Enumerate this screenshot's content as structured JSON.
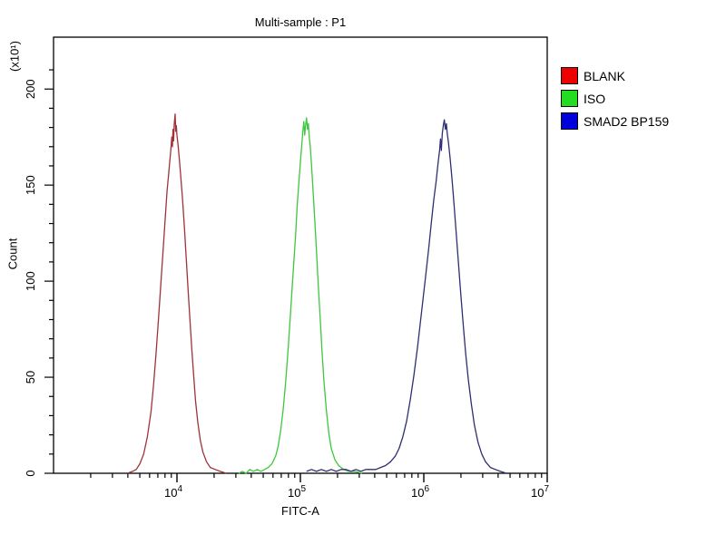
{
  "title": "Multi-sample : P1",
  "axes": {
    "x": {
      "label": "FITC-A",
      "scale": "log10",
      "min_exp": 3,
      "max_exp": 7,
      "tick_base": "10",
      "major_exponents": [
        4,
        5,
        6,
        7
      ],
      "minor_multiples": [
        2,
        3,
        4,
        5,
        6,
        7,
        8,
        9
      ]
    },
    "y": {
      "label": "Count",
      "multiplier": "(x10¹)",
      "major_ticks": [
        0,
        50,
        100,
        150,
        200
      ],
      "minor_step": 10,
      "max": 227
    }
  },
  "legend": {
    "items": [
      {
        "label": "BLANK",
        "color": "#ee0000"
      },
      {
        "label": "ISO",
        "color": "#22dd22"
      },
      {
        "label": "SMAD2 BP159",
        "color": "#0000dd"
      }
    ]
  },
  "frame_color": "#000000",
  "chart_data": {
    "type": "line",
    "subtype": "flow-cytometry-histogram-overlay",
    "title": "Multi-sample : P1",
    "xlabel": "FITC-A",
    "ylabel": "Count",
    "x_scale": "log10",
    "xlim_exponents": [
      3,
      7
    ],
    "ylim": [
      0,
      227
    ],
    "y_units_multiplier": "(x10¹)",
    "grid": false,
    "legend_position": "right-outside",
    "series": [
      {
        "name": "BLANK",
        "color": "#a03238",
        "peak_x": 9660,
        "peak_y": 187,
        "points": [
          [
            3.6,
            0
          ],
          [
            3.64,
            1
          ],
          [
            3.67,
            2
          ],
          [
            3.7,
            5
          ],
          [
            3.73,
            10
          ],
          [
            3.76,
            19
          ],
          [
            3.79,
            32
          ],
          [
            3.81,
            46
          ],
          [
            3.83,
            62
          ],
          [
            3.85,
            80
          ],
          [
            3.87,
            99
          ],
          [
            3.89,
            118
          ],
          [
            3.905,
            133
          ],
          [
            3.92,
            147
          ],
          [
            3.93,
            154
          ],
          [
            3.94,
            161
          ],
          [
            3.95,
            168
          ],
          [
            3.958,
            175
          ],
          [
            3.963,
            170
          ],
          [
            3.968,
            179
          ],
          [
            3.973,
            173
          ],
          [
            3.978,
            182
          ],
          [
            3.985,
            187
          ],
          [
            3.99,
            178
          ],
          [
            3.995,
            181
          ],
          [
            4.0,
            176
          ],
          [
            4.01,
            170
          ],
          [
            4.02,
            163
          ],
          [
            4.03,
            155
          ],
          [
            4.045,
            143
          ],
          [
            4.06,
            128
          ],
          [
            4.075,
            112
          ],
          [
            4.09,
            96
          ],
          [
            4.105,
            80
          ],
          [
            4.12,
            65
          ],
          [
            4.135,
            51
          ],
          [
            4.15,
            38
          ],
          [
            4.17,
            26
          ],
          [
            4.19,
            17
          ],
          [
            4.21,
            11
          ],
          [
            4.24,
            6
          ],
          [
            4.27,
            3
          ],
          [
            4.31,
            2
          ],
          [
            4.35,
            1
          ],
          [
            4.4,
            0
          ]
        ]
      },
      {
        "name": "ISO",
        "color": "#3dc83d",
        "peak_x": 112000,
        "peak_y": 185,
        "points": [
          [
            4.5,
            0
          ],
          [
            4.53,
            1
          ],
          [
            4.56,
            0
          ],
          [
            4.59,
            2
          ],
          [
            4.62,
            1
          ],
          [
            4.65,
            2
          ],
          [
            4.68,
            1
          ],
          [
            4.71,
            2
          ],
          [
            4.74,
            3
          ],
          [
            4.77,
            5
          ],
          [
            4.8,
            9
          ],
          [
            4.82,
            14
          ],
          [
            4.84,
            22
          ],
          [
            4.86,
            33
          ],
          [
            4.88,
            47
          ],
          [
            4.9,
            64
          ],
          [
            4.92,
            83
          ],
          [
            4.94,
            103
          ],
          [
            4.96,
            123
          ],
          [
            4.975,
            140
          ],
          [
            4.99,
            153
          ],
          [
            5.0,
            162
          ],
          [
            5.01,
            170
          ],
          [
            5.02,
            178
          ],
          [
            5.028,
            183
          ],
          [
            5.035,
            176
          ],
          [
            5.042,
            181
          ],
          [
            5.05,
            185
          ],
          [
            5.058,
            179
          ],
          [
            5.065,
            182
          ],
          [
            5.072,
            175
          ],
          [
            5.08,
            170
          ],
          [
            5.09,
            161
          ],
          [
            5.1,
            150
          ],
          [
            5.115,
            134
          ],
          [
            5.13,
            116
          ],
          [
            5.145,
            98
          ],
          [
            5.16,
            81
          ],
          [
            5.175,
            64
          ],
          [
            5.19,
            49
          ],
          [
            5.21,
            33
          ],
          [
            5.23,
            21
          ],
          [
            5.25,
            13
          ],
          [
            5.28,
            7
          ],
          [
            5.31,
            4
          ],
          [
            5.35,
            2
          ],
          [
            5.39,
            1
          ],
          [
            5.44,
            1
          ],
          [
            5.5,
            0
          ]
        ]
      },
      {
        "name": "SMAD2 BP159",
        "color": "#2e2e73",
        "peak_x": 1480000,
        "peak_y": 184,
        "points": [
          [
            5.05,
            1
          ],
          [
            5.09,
            2
          ],
          [
            5.13,
            1
          ],
          [
            5.17,
            2
          ],
          [
            5.21,
            1
          ],
          [
            5.25,
            2
          ],
          [
            5.29,
            1
          ],
          [
            5.33,
            2
          ],
          [
            5.37,
            2
          ],
          [
            5.41,
            1
          ],
          [
            5.45,
            2
          ],
          [
            5.49,
            1
          ],
          [
            5.53,
            2
          ],
          [
            5.57,
            2
          ],
          [
            5.61,
            2
          ],
          [
            5.65,
            3
          ],
          [
            5.69,
            4
          ],
          [
            5.73,
            6
          ],
          [
            5.77,
            9
          ],
          [
            5.8,
            13
          ],
          [
            5.83,
            19
          ],
          [
            5.86,
            27
          ],
          [
            5.89,
            38
          ],
          [
            5.92,
            51
          ],
          [
            5.95,
            66
          ],
          [
            5.98,
            83
          ],
          [
            6.01,
            100
          ],
          [
            6.04,
            117
          ],
          [
            6.06,
            130
          ],
          [
            6.08,
            142
          ],
          [
            6.1,
            152
          ],
          [
            6.115,
            161
          ],
          [
            6.128,
            168
          ],
          [
            6.135,
            174
          ],
          [
            6.142,
            168
          ],
          [
            6.15,
            177
          ],
          [
            6.158,
            181
          ],
          [
            6.166,
            184
          ],
          [
            6.175,
            179
          ],
          [
            6.183,
            182
          ],
          [
            6.19,
            177
          ],
          [
            6.2,
            172
          ],
          [
            6.215,
            163
          ],
          [
            6.23,
            152
          ],
          [
            6.245,
            140
          ],
          [
            6.26,
            127
          ],
          [
            6.28,
            110
          ],
          [
            6.3,
            93
          ],
          [
            6.32,
            77
          ],
          [
            6.34,
            62
          ],
          [
            6.36,
            49
          ],
          [
            6.385,
            36
          ],
          [
            6.41,
            25
          ],
          [
            6.44,
            16
          ],
          [
            6.47,
            10
          ],
          [
            6.5,
            6
          ],
          [
            6.54,
            3
          ],
          [
            6.58,
            2
          ],
          [
            6.62,
            1
          ],
          [
            6.67,
            0
          ]
        ]
      }
    ]
  }
}
